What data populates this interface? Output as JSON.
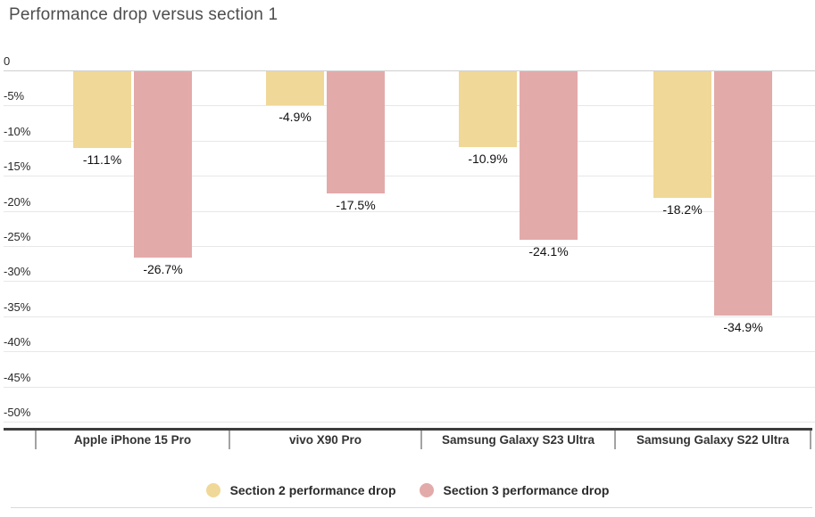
{
  "title": "Performance drop versus section 1",
  "chart_data": {
    "type": "bar",
    "orientation": "vertical-negative",
    "title": "Performance drop versus section 1",
    "xlabel": "",
    "ylabel": "",
    "ylim": [
      0,
      -50
    ],
    "grid": true,
    "legend_position": "bottom",
    "categories": [
      "Apple iPhone 15 Pro",
      "vivo X90 Pro",
      "Samsung Galaxy S23 Ultra",
      "Samsung Galaxy S22 Ultra"
    ],
    "series": [
      {
        "name": "Section 2 performance drop",
        "color": "#f0d898",
        "values": [
          -11.1,
          -4.9,
          -10.9,
          -18.2
        ],
        "labels": [
          "-11.1%",
          "-4.9%",
          "-10.9%",
          "-18.2%"
        ]
      },
      {
        "name": "Section 3 performance drop",
        "color": "#e3aaaa",
        "values": [
          -26.7,
          -17.5,
          -24.1,
          -34.9
        ],
        "labels": [
          "-26.7%",
          "-17.5%",
          "-24.1%",
          "-34.9%"
        ]
      }
    ],
    "y_ticks": [
      "0",
      "-5%",
      "-10%",
      "-15%",
      "-20%",
      "-25%",
      "-30%",
      "-35%",
      "-40%",
      "-45%",
      "-50%"
    ],
    "y_tick_values": [
      0,
      -5,
      -10,
      -15,
      -20,
      -25,
      -30,
      -35,
      -40,
      -45,
      -50
    ]
  },
  "colors": {
    "series_1": "#f0d898",
    "series_2": "#e3aaaa",
    "gridline": "#e7e7e7",
    "zero_line": "#cfcfcf",
    "axis_line": "#3d3d3d",
    "title_text": "#4d4d4d",
    "label_text": "#111111"
  }
}
